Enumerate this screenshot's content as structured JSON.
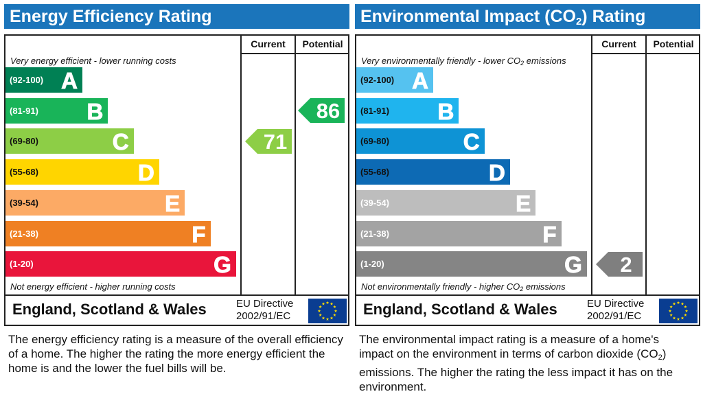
{
  "chart_data": [
    {
      "type": "bar",
      "title": "Energy Efficiency Rating",
      "columns": [
        "Current",
        "Potential"
      ],
      "top_note": "Very energy efficient - lower running costs",
      "bottom_note": "Not energy efficient - higher running costs",
      "bands": [
        {
          "letter": "A",
          "range": "(92-100)",
          "color": "#008054"
        },
        {
          "letter": "B",
          "range": "(81-91)",
          "color": "#19b459"
        },
        {
          "letter": "C",
          "range": "(69-80)",
          "color": "#8dce46"
        },
        {
          "letter": "D",
          "range": "(55-68)",
          "color": "#ffd500"
        },
        {
          "letter": "E",
          "range": "(39-54)",
          "color": "#fcaa65"
        },
        {
          "letter": "F",
          "range": "(21-38)",
          "color": "#ef8023"
        },
        {
          "letter": "G",
          "range": "(1-20)",
          "color": "#e9153b"
        }
      ],
      "current": {
        "value": 71,
        "band": "C",
        "color": "#8dce46"
      },
      "potential": {
        "value": 86,
        "band": "B",
        "color": "#19b459"
      },
      "region": "England, Scotland & Wales",
      "directive": [
        "EU Directive",
        "2002/91/EC"
      ],
      "description": "The energy efficiency rating is a measure of the overall efficiency of a home. The higher the rating the more energy efficient the home is and the lower the fuel bills will be."
    },
    {
      "type": "bar",
      "title": "Environmental Impact (CO2) Rating",
      "columns": [
        "Current",
        "Potential"
      ],
      "top_note": "Very environmentally friendly - lower CO2 emissions",
      "bottom_note": "Not environmentally friendly - higher CO2 emissions",
      "bands": [
        {
          "letter": "A",
          "range": "(92-100)",
          "color": "#55c2f0"
        },
        {
          "letter": "B",
          "range": "(81-91)",
          "color": "#1fb4ee"
        },
        {
          "letter": "C",
          "range": "(69-80)",
          "color": "#0e93d5"
        },
        {
          "letter": "D",
          "range": "(55-68)",
          "color": "#0d6ab4"
        },
        {
          "letter": "E",
          "range": "(39-54)",
          "color": "#bdbdbd"
        },
        {
          "letter": "F",
          "range": "(21-38)",
          "color": "#a3a3a3"
        },
        {
          "letter": "G",
          "range": "(1-20)",
          "color": "#858585"
        }
      ],
      "current": {
        "value": 2,
        "band": "G",
        "color": "#7f7f7f"
      },
      "potential": null,
      "region": "England, Scotland & Wales",
      "directive": [
        "EU Directive",
        "2002/91/EC"
      ],
      "description": "The environmental impact rating is a measure of a home's impact on the environment in terms of carbon dioxide (CO2) emissions. The higher the rating the less impact it has on the environment."
    }
  ],
  "icons": {
    "flag": "eu-flag-icon"
  }
}
